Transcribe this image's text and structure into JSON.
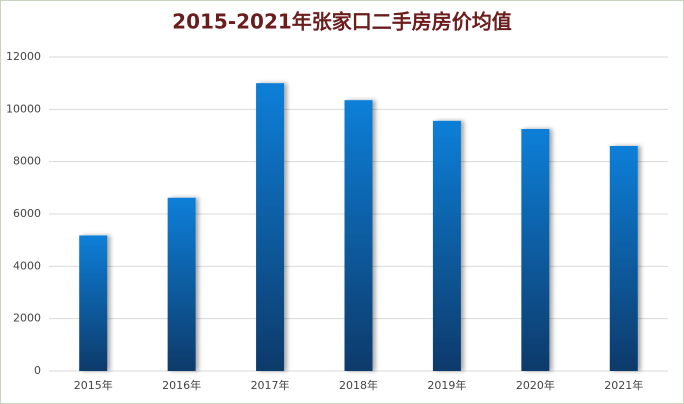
{
  "chart_data": {
    "type": "bar",
    "title": "2015-2021年张家口二手房房价均值",
    "categories": [
      "2015年",
      "2016年",
      "2017年",
      "2018年",
      "2019年",
      "2020年",
      "2021年"
    ],
    "values": [
      5180,
      6620,
      11000,
      10350,
      9560,
      9250,
      8600
    ],
    "color": "#0a7fd8",
    "ylim": [
      0,
      12000
    ],
    "yticks": [
      0,
      2000,
      4000,
      6000,
      8000,
      10000,
      12000
    ],
    "grid": true
  }
}
